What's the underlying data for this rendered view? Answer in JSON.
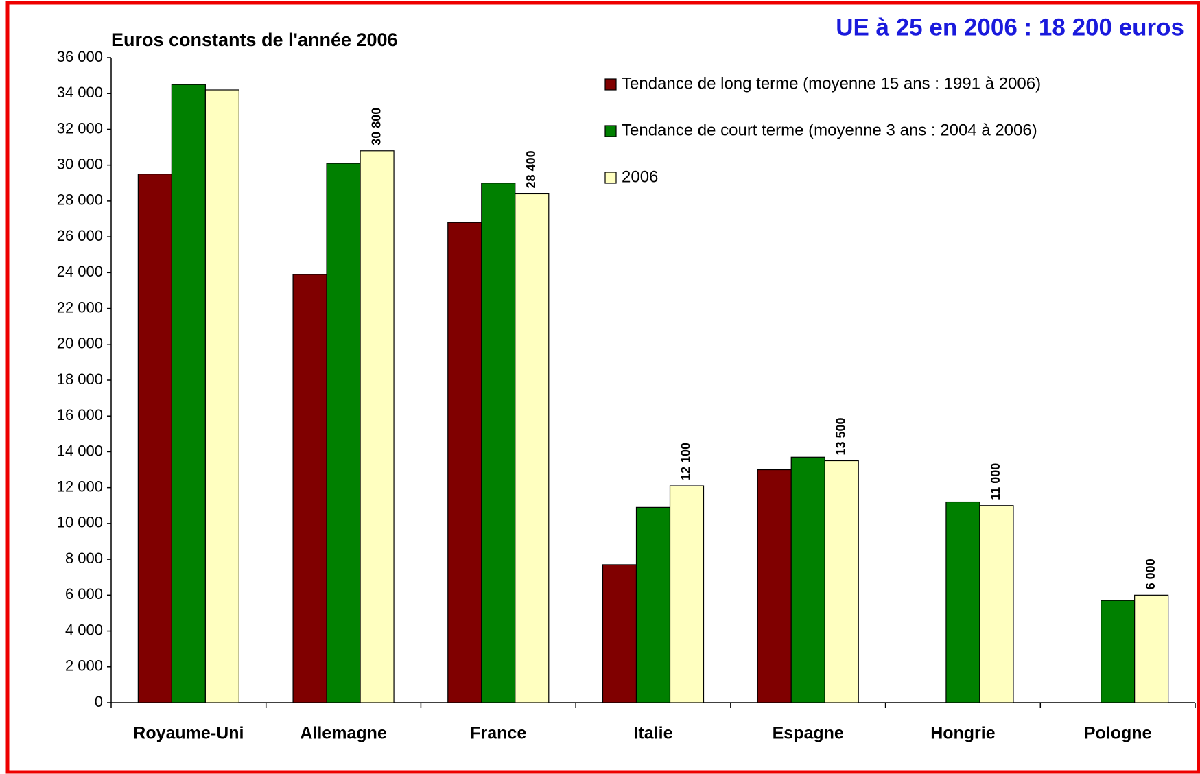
{
  "chart_data": {
    "type": "bar",
    "title": "Euros constants de l'année 2006",
    "annotation": "UE à 25 en 2006 : 18 200 euros",
    "categories": [
      "Royaume-Uni",
      "Allemagne",
      "France",
      "Italie",
      "Espagne",
      "Hongrie",
      "Pologne"
    ],
    "series": [
      {
        "name": "Tendance de long terme (moyenne 15 ans : 1991 à 2006)",
        "color": "#800000",
        "values": [
          29500,
          23900,
          26800,
          7700,
          13000,
          null,
          null
        ]
      },
      {
        "name": "Tendance de court terme (moyenne 3 ans : 2004 à 2006)",
        "color": "#008000",
        "values": [
          34500,
          30100,
          29000,
          10900,
          13700,
          11200,
          5700
        ]
      },
      {
        "name": "2006",
        "color": "#ffffc0",
        "values": [
          34200,
          30800,
          28400,
          12100,
          13500,
          11000,
          6000
        ],
        "value_labels": [
          null,
          "30 800",
          "28 400",
          "12 100",
          "13 500",
          "11 000",
          "6 000"
        ]
      }
    ],
    "ylim": [
      0,
      36000
    ],
    "yticks": [
      0,
      {
        "value": 2000,
        "label": "2 000"
      },
      {
        "value": 4000,
        "label": "4 000"
      },
      {
        "value": 6000,
        "label": "6 000"
      },
      {
        "value": 8000,
        "label": "8 000"
      },
      {
        "value": 10000,
        "label": "10 000"
      },
      {
        "value": 12000,
        "label": "12 000"
      },
      {
        "value": 14000,
        "label": "14 000"
      },
      {
        "value": 16000,
        "label": "16 000"
      },
      {
        "value": 18000,
        "label": "18 000"
      },
      {
        "value": 20000,
        "label": "20 000"
      },
      {
        "value": 22000,
        "label": "22 000"
      },
      {
        "value": 24000,
        "label": "24 000"
      },
      {
        "value": 26000,
        "label": "26 000"
      },
      {
        "value": 28000,
        "label": "28 000"
      },
      {
        "value": 30000,
        "label": "30 000"
      },
      {
        "value": 32000,
        "label": "32 000"
      },
      {
        "value": 34000,
        "label": "34 000"
      },
      {
        "value": 36000,
        "label": "36 000"
      }
    ],
    "grid": false
  }
}
